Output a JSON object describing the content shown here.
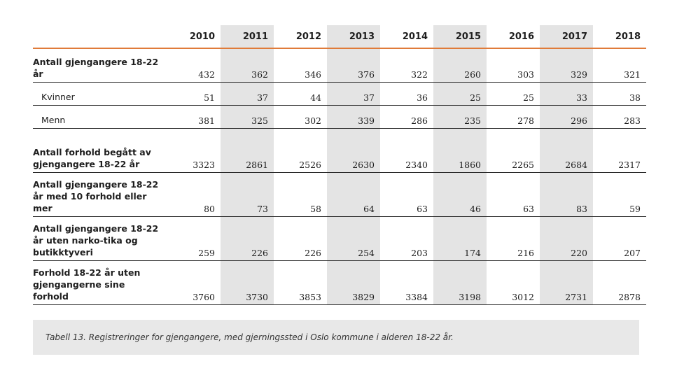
{
  "table": {
    "years": [
      "2010",
      "2011",
      "2012",
      "2013",
      "2014",
      "2015",
      "2016",
      "2017",
      "2018"
    ],
    "rows": [
      {
        "label": "Antall gjengangere 18-22 år",
        "values": [
          "432",
          "362",
          "346",
          "376",
          "322",
          "260",
          "303",
          "329",
          "321"
        ]
      },
      {
        "label": "Kvinner",
        "values": [
          "51",
          "37",
          "44",
          "37",
          "36",
          "25",
          "25",
          "33",
          "38"
        ]
      },
      {
        "label": "Menn",
        "values": [
          "381",
          "325",
          "302",
          "339",
          "286",
          "235",
          "278",
          "296",
          "283"
        ]
      },
      {
        "label": "Antall forhold begått av gjengangere 18-22 år",
        "values": [
          "3323",
          "2861",
          "2526",
          "2630",
          "2340",
          "1860",
          "2265",
          "2684",
          "2317"
        ]
      },
      {
        "label": "Antall gjengangere 18-22 år med 10 forhold eller mer",
        "values": [
          "80",
          "73",
          "58",
          "64",
          "63",
          "46",
          "63",
          "83",
          "59"
        ]
      },
      {
        "label": "Antall gjengangere 18-22 år uten narko-tika og butikktyveri",
        "values": [
          "259",
          "226",
          "226",
          "254",
          "203",
          "174",
          "216",
          "220",
          "207"
        ]
      },
      {
        "label": "Forhold 18-22 år uten gjengangerne sine forhold",
        "values": [
          "3760",
          "3730",
          "3853",
          "3829",
          "3384",
          "3198",
          "3012",
          "2731",
          "2878"
        ]
      }
    ]
  },
  "caption": "Tabell 13. Registreringer for gjengangere, med gjerningssted i Oslo kommune i alderen 18-22 år."
}
